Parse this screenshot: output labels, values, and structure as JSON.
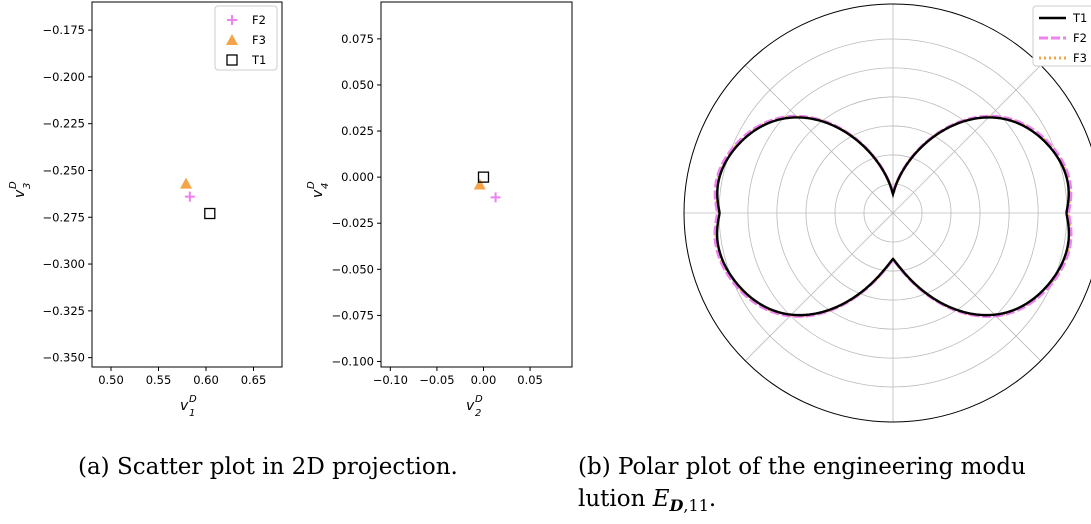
{
  "colors": {
    "T1": "#000000",
    "F2": "#ee82ee",
    "F3": "#f4a54a",
    "grid": "#bbbbbb"
  },
  "chart_data": [
    {
      "type": "scatter",
      "xlabel": "v",
      "xlabel_sub": "1",
      "xlabel_sup": "D",
      "ylabel": "v",
      "ylabel_sub": "3",
      "ylabel_sup": "D",
      "xlim": [
        0.48,
        0.68
      ],
      "ylim": [
        -0.355,
        -0.16
      ],
      "xticks": [
        "0.50",
        "0.55",
        "0.60",
        "0.65"
      ],
      "xtick_values": [
        0.5,
        0.55,
        0.6,
        0.65
      ],
      "yticks": [
        "−0.175",
        "−0.200",
        "−0.225",
        "−0.250",
        "−0.275",
        "−0.300",
        "−0.325",
        "−0.350"
      ],
      "ytick_values": [
        -0.175,
        -0.2,
        -0.225,
        -0.25,
        -0.275,
        -0.3,
        -0.325,
        -0.35
      ],
      "series": [
        {
          "name": "F2",
          "marker": "plus",
          "x": [
            0.583
          ],
          "y": [
            -0.264
          ]
        },
        {
          "name": "F3",
          "marker": "triangle",
          "x": [
            0.579
          ],
          "y": [
            -0.257
          ]
        },
        {
          "name": "T1",
          "marker": "square",
          "x": [
            0.604
          ],
          "y": [
            -0.273
          ]
        }
      ],
      "legend": {
        "position": "top-right",
        "entries": [
          "F2",
          "F3",
          "T1"
        ]
      }
    },
    {
      "type": "scatter",
      "xlabel": "v",
      "xlabel_sub": "2",
      "xlabel_sup": "D",
      "ylabel": "v",
      "ylabel_sub": "4",
      "ylabel_sup": "D",
      "xlim": [
        -0.11,
        0.095
      ],
      "ylim": [
        -0.103,
        0.095
      ],
      "xticks": [
        "−0.10",
        "−0.05",
        "0.00",
        "0.05"
      ],
      "xtick_values": [
        -0.1,
        -0.05,
        0.0,
        0.05
      ],
      "yticks": [
        "0.075",
        "0.050",
        "0.025",
        "0.000",
        "−0.025",
        "−0.050",
        "−0.075",
        "−0.100"
      ],
      "ytick_values": [
        0.075,
        0.05,
        0.025,
        0.0,
        -0.025,
        -0.05,
        -0.075,
        -0.1
      ],
      "series": [
        {
          "name": "F2",
          "marker": "plus",
          "x": [
            0.013
          ],
          "y": [
            -0.011
          ]
        },
        {
          "name": "F3",
          "marker": "triangle",
          "x": [
            -0.004
          ],
          "y": [
            -0.004
          ]
        },
        {
          "name": "T1",
          "marker": "square",
          "x": [
            0.0
          ],
          "y": [
            0.0
          ]
        }
      ]
    },
    {
      "type": "line",
      "projection": "polar",
      "radial_gridlines": 6,
      "angular_gridline_step_deg": 45,
      "series": [
        {
          "name": "T1",
          "style": "solid",
          "scale": 1.0
        },
        {
          "name": "F2",
          "style": "dashed",
          "scale": 1.012
        },
        {
          "name": "F3",
          "style": "dotted",
          "scale": 1.006
        }
      ],
      "shape": {
        "radius_at_0deg": 0.83,
        "radius_peak": 0.9,
        "peak_angle_deg": 26,
        "radius_at_90deg": 0.09,
        "radius_at_270deg": 0.22
      },
      "legend": {
        "position": "top-right",
        "entries": [
          "T1",
          "F2",
          "F3"
        ]
      }
    }
  ],
  "captions": {
    "a": "(a) Scatter plot in 2D projection.",
    "b_line1": "(b) Polar plot of the engineering modu",
    "b_line2_pre": "lution ",
    "b_line2_math": "E",
    "b_line2_sub_bold": "D",
    "b_line2_sub_rest": ",11",
    "b_line2_post": "."
  }
}
